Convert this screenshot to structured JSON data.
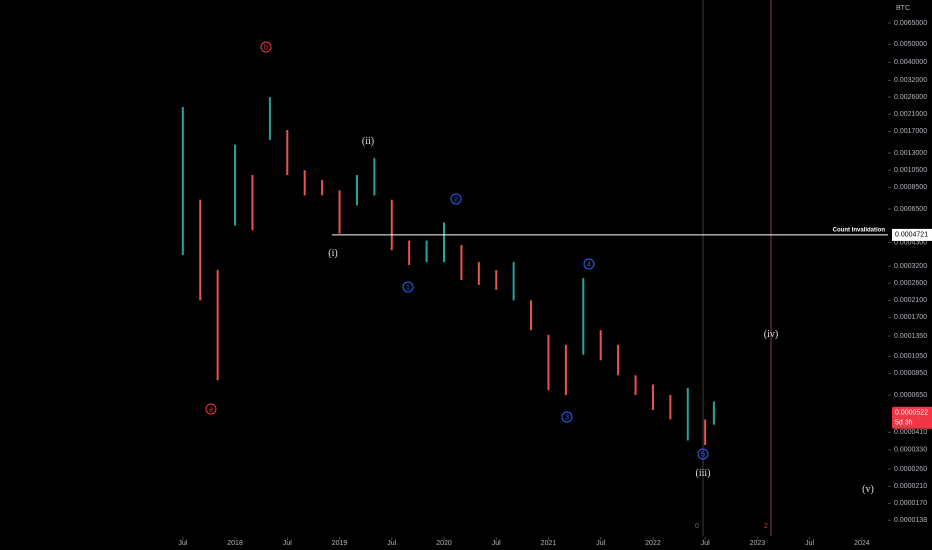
{
  "chart_data": {
    "type": "ohlc",
    "symbol": "BTC",
    "log_scale": true,
    "x": [
      6,
      8,
      10,
      12,
      14,
      16,
      18,
      20,
      22,
      24,
      26,
      28,
      30,
      32,
      34,
      36,
      38,
      40,
      42,
      44,
      46,
      48,
      50,
      52,
      54,
      56,
      58,
      60,
      62,
      64,
      66,
      67
    ],
    "high": [
      0.0023,
      0.00073,
      0.000305,
      0.00144,
      0.00099,
      0.0026,
      0.00173,
      0.00105,
      0.00093,
      0.00082,
      0.00099,
      0.00122,
      0.00073,
      0.00044,
      0.00044,
      0.00055,
      0.000416,
      0.000337,
      0.000305,
      0.000337,
      0.00021,
      0.000137,
      0.000121,
      0.000277,
      0.000145,
      0.000121,
      8.3e-05,
      7.4e-05,
      6.5e-05,
      7.1e-05,
      4.8e-05,
      6e-05
    ],
    "low": [
      0.000368,
      0.00021,
      7.8e-05,
      0.00053,
      0.0005,
      0.00153,
      0.00099,
      0.00077,
      0.00077,
      0.00048,
      0.00068,
      0.00077,
      0.00039,
      0.000325,
      0.000337,
      0.000337,
      0.00027,
      0.000254,
      0.000239,
      0.00021,
      0.000145,
      6.9e-05,
      6.5e-05,
      0.000107,
      0.0001,
      8.3e-05,
      6.5e-05,
      5.4e-05,
      4.8e-05,
      3.7e-05,
      3.5e-05,
      4.5e-05
    ],
    "up_color": "#26a69a",
    "down_color": "#ef5350",
    "xlim": [
      -15,
      87
    ],
    "xticks": [
      {
        "value": 6,
        "label": "Jul"
      },
      {
        "value": 12,
        "label": "2018"
      },
      {
        "value": 18,
        "label": "Jul"
      },
      {
        "value": 24,
        "label": "2019"
      },
      {
        "value": 30,
        "label": "Jul"
      },
      {
        "value": 36,
        "label": "2020"
      },
      {
        "value": 42,
        "label": "Jul"
      },
      {
        "value": 48,
        "label": "2021"
      },
      {
        "value": 54,
        "label": "Jul"
      },
      {
        "value": 60,
        "label": "2022"
      },
      {
        "value": 66,
        "label": "Jul"
      },
      {
        "value": 72,
        "label": "2023"
      },
      {
        "value": 78,
        "label": "Jul"
      },
      {
        "value": 84,
        "label": "2024"
      }
    ],
    "ylim": [
      1.08e-05,
      0.00865
    ],
    "yticks": [
      {
        "value": 0.0065,
        "label": "0.0065000"
      },
      {
        "value": 0.005,
        "label": "0.0050000"
      },
      {
        "value": 0.004,
        "label": "0.0040000"
      },
      {
        "value": 0.0032,
        "label": "0.0032000"
      },
      {
        "value": 0.0026,
        "label": "0.0026000"
      },
      {
        "value": 0.0021,
        "label": "0.0021000"
      },
      {
        "value": 0.0017,
        "label": "0.0017000"
      },
      {
        "value": 0.0013,
        "label": "0.0013000"
      },
      {
        "value": 0.00105,
        "label": "0.0010500"
      },
      {
        "value": 0.00085,
        "label": "0.0008500"
      },
      {
        "value": 0.00065,
        "label": "0.0006500"
      },
      {
        "value": 0.00043,
        "label": "0.0004300"
      },
      {
        "value": 0.00032,
        "label": "0.0003200"
      },
      {
        "value": 0.00026,
        "label": "0.0002600"
      },
      {
        "value": 0.00021,
        "label": "0.0002100"
      },
      {
        "value": 0.00017,
        "label": "0.0001700"
      },
      {
        "value": 0.000135,
        "label": "0.0001350"
      },
      {
        "value": 0.000105,
        "label": "0.0001050"
      },
      {
        "value": 8.5e-05,
        "label": "0.0000850"
      },
      {
        "value": 6.5e-05,
        "label": "0.0000650"
      },
      {
        "value": 4.1e-05,
        "label": "0.0000410"
      },
      {
        "value": 3.3e-05,
        "label": "0.0000330"
      },
      {
        "value": 2.6e-05,
        "label": "0.0000260"
      },
      {
        "value": 2.1e-05,
        "label": "0.0000210"
      },
      {
        "value": 1.7e-05,
        "label": "0.0000170"
      },
      {
        "value": 1.38e-05,
        "label": "0.0000138"
      }
    ],
    "invalidation": {
      "text": "Count Invalidation",
      "value": 0.0004721
    },
    "last_price": {
      "value": 5.22e-05,
      "countdown": "5d 3h"
    },
    "waves": [
      "a",
      "b",
      "(i)",
      "(ii)",
      "(iii)",
      "(iv)",
      "(v)",
      "1",
      "2",
      "3",
      "4",
      "5"
    ],
    "markers": [
      "0",
      "2"
    ]
  }
}
